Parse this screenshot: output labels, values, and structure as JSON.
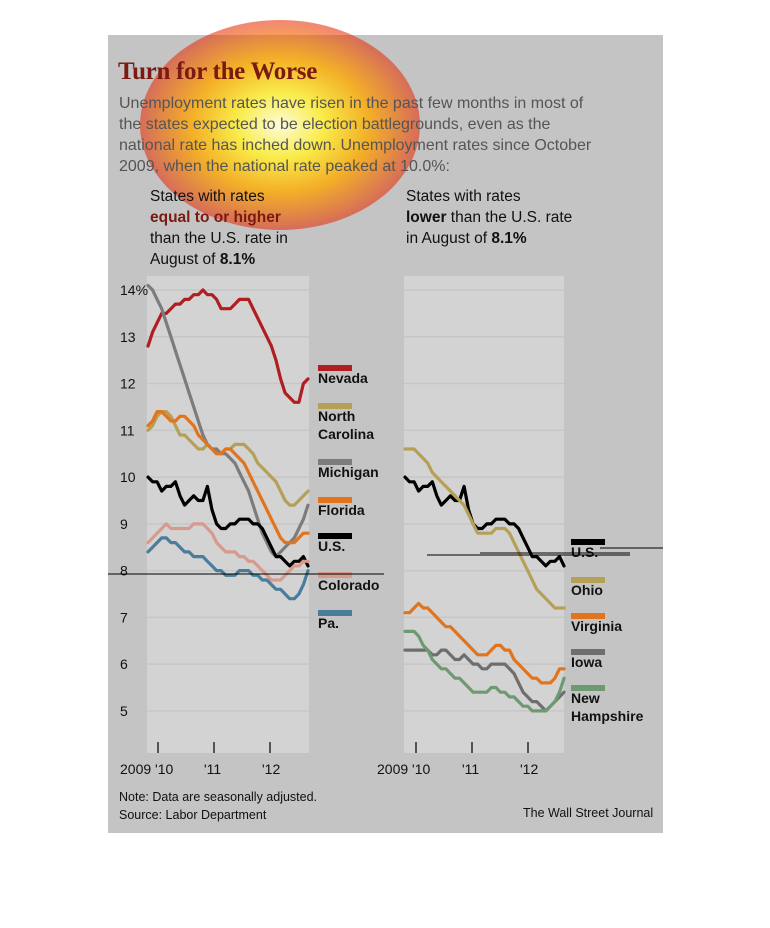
{
  "title": "Turn for the Worse",
  "intro": "Unemployment rates have risen in the past few months in most of the states expected to be election battlegrounds, even as the national rate has inched down. Unemployment rates since October 2009, when the national rate peaked at 10.0%:",
  "left_header": {
    "pre": "States with rates",
    "bold": "equal to or higher",
    "post": "than the U.S. rate in August of",
    "value": "8.1%"
  },
  "right_header": {
    "pre": "States with rates",
    "bold": "lower",
    "post": "than the U.S. rate in August of",
    "value": "8.1%"
  },
  "note": "Note: Data are seasonally adjusted.",
  "source": "Source: Labor Department",
  "credit": "The Wall Street Journal",
  "colors": {
    "card": "#c4c4c4",
    "band": "#d3d3d3",
    "grid": "#c6c6c6",
    "title": "#7a1a10"
  },
  "chart_data": [
    {
      "type": "line",
      "ylim": [
        4.1,
        14.3
      ],
      "y_ticks": [
        5,
        6,
        7,
        8,
        9,
        10,
        11,
        12,
        13,
        14
      ],
      "y_tick_labels": [
        "5",
        "6",
        "7",
        "8",
        "9",
        "10",
        "11",
        "12",
        "13",
        "14%"
      ],
      "x_tick_labels": [
        "2009 '10",
        "'11",
        "'12"
      ],
      "x_range": [
        "2009-10",
        "2012-08"
      ],
      "grid": true,
      "legend": "right",
      "series": [
        {
          "name": "Nevada",
          "color": "#b01e22",
          "values": [
            12.8,
            13.1,
            13.3,
            13.5,
            13.5,
            13.6,
            13.7,
            13.7,
            13.8,
            13.8,
            13.9,
            13.9,
            14.0,
            13.9,
            13.9,
            13.8,
            13.6,
            13.6,
            13.6,
            13.7,
            13.8,
            13.8,
            13.8,
            13.6,
            13.4,
            13.2,
            13.0,
            12.8,
            12.5,
            12.1,
            11.8,
            11.7,
            11.6,
            11.6,
            12.0,
            12.1
          ]
        },
        {
          "name": "North Carolina",
          "color": "#b5a058",
          "values": [
            11.0,
            11.1,
            11.3,
            11.4,
            11.4,
            11.3,
            11.1,
            10.9,
            10.9,
            10.8,
            10.7,
            10.6,
            10.6,
            10.7,
            10.6,
            10.5,
            10.5,
            10.6,
            10.6,
            10.7,
            10.7,
            10.7,
            10.6,
            10.5,
            10.3,
            10.2,
            10.1,
            10.0,
            9.9,
            9.7,
            9.5,
            9.4,
            9.4,
            9.5,
            9.6,
            9.7
          ]
        },
        {
          "name": "Michigan",
          "color": "#7c7c7c",
          "values": [
            14.1,
            14.0,
            13.8,
            13.6,
            13.3,
            13.0,
            12.7,
            12.4,
            12.1,
            11.8,
            11.5,
            11.2,
            10.9,
            10.7,
            10.6,
            10.6,
            10.5,
            10.5,
            10.4,
            10.3,
            10.1,
            9.9,
            9.7,
            9.4,
            9.1,
            8.8,
            8.6,
            8.4,
            8.3,
            8.4,
            8.5,
            8.6,
            8.7,
            8.9,
            9.1,
            9.4
          ]
        },
        {
          "name": "Florida",
          "color": "#e1741d",
          "values": [
            11.1,
            11.2,
            11.4,
            11.4,
            11.3,
            11.2,
            11.2,
            11.3,
            11.3,
            11.2,
            11.1,
            10.9,
            10.8,
            10.7,
            10.6,
            10.5,
            10.5,
            10.6,
            10.6,
            10.5,
            10.4,
            10.3,
            10.1,
            9.9,
            9.7,
            9.5,
            9.3,
            9.1,
            8.9,
            8.7,
            8.6,
            8.6,
            8.6,
            8.7,
            8.8,
            8.8
          ]
        },
        {
          "name": "U.S.",
          "color": "#000000",
          "values": [
            10.0,
            9.9,
            9.9,
            9.7,
            9.8,
            9.8,
            9.9,
            9.6,
            9.4,
            9.5,
            9.6,
            9.5,
            9.5,
            9.8,
            9.3,
            9.0,
            8.9,
            8.9,
            9.0,
            9.0,
            9.1,
            9.1,
            9.1,
            9.0,
            9.0,
            8.9,
            8.7,
            8.5,
            8.3,
            8.3,
            8.2,
            8.1,
            8.2,
            8.2,
            8.3,
            8.1
          ]
        },
        {
          "name": "Colorado",
          "color": "#d79a8c",
          "values": [
            8.6,
            8.7,
            8.8,
            8.9,
            9.0,
            8.9,
            8.9,
            8.9,
            8.9,
            8.9,
            9.0,
            9.0,
            9.0,
            8.9,
            8.8,
            8.6,
            8.5,
            8.4,
            8.4,
            8.4,
            8.3,
            8.3,
            8.2,
            8.2,
            8.1,
            8.0,
            7.9,
            7.8,
            7.8,
            7.8,
            7.9,
            8.0,
            8.1,
            8.1,
            8.2,
            8.2
          ]
        },
        {
          "name": "Pa.",
          "color": "#4a7d9b",
          "values": [
            8.4,
            8.5,
            8.6,
            8.7,
            8.7,
            8.6,
            8.6,
            8.5,
            8.4,
            8.4,
            8.3,
            8.3,
            8.3,
            8.2,
            8.1,
            8.0,
            8.0,
            7.9,
            7.9,
            7.9,
            8.0,
            8.0,
            8.0,
            7.9,
            7.9,
            7.8,
            7.8,
            7.7,
            7.6,
            7.6,
            7.5,
            7.4,
            7.4,
            7.5,
            7.7,
            8.0
          ]
        }
      ]
    },
    {
      "type": "line",
      "ylim": [
        4.1,
        14.3
      ],
      "x_tick_labels": [
        "2009 '10",
        "'11",
        "'12"
      ],
      "x_range": [
        "2009-10",
        "2012-08"
      ],
      "grid": true,
      "legend": "right",
      "series": [
        {
          "name": "U.S.",
          "color": "#000000",
          "values": [
            10.0,
            9.9,
            9.9,
            9.7,
            9.8,
            9.8,
            9.9,
            9.6,
            9.4,
            9.5,
            9.6,
            9.5,
            9.5,
            9.8,
            9.3,
            9.0,
            8.9,
            8.9,
            9.0,
            9.0,
            9.1,
            9.1,
            9.1,
            9.0,
            9.0,
            8.9,
            8.7,
            8.5,
            8.3,
            8.3,
            8.2,
            8.1,
            8.2,
            8.2,
            8.3,
            8.1
          ]
        },
        {
          "name": "Ohio",
          "color": "#b5a058",
          "values": [
            10.6,
            10.6,
            10.6,
            10.5,
            10.4,
            10.3,
            10.1,
            10.0,
            9.9,
            9.8,
            9.7,
            9.6,
            9.5,
            9.4,
            9.2,
            9.0,
            8.8,
            8.8,
            8.8,
            8.8,
            8.9,
            8.9,
            8.9,
            8.8,
            8.6,
            8.4,
            8.2,
            8.0,
            7.8,
            7.6,
            7.5,
            7.4,
            7.3,
            7.2,
            7.2,
            7.2
          ]
        },
        {
          "name": "Virginia",
          "color": "#e1741d",
          "values": [
            7.1,
            7.1,
            7.2,
            7.3,
            7.2,
            7.2,
            7.1,
            7.0,
            6.9,
            6.8,
            6.8,
            6.7,
            6.6,
            6.5,
            6.4,
            6.3,
            6.2,
            6.2,
            6.2,
            6.3,
            6.4,
            6.4,
            6.3,
            6.3,
            6.1,
            6.0,
            5.9,
            5.8,
            5.7,
            5.7,
            5.6,
            5.6,
            5.6,
            5.7,
            5.9,
            5.9
          ]
        },
        {
          "name": "Iowa",
          "color": "#6e6e6e",
          "values": [
            6.3,
            6.3,
            6.3,
            6.3,
            6.3,
            6.3,
            6.2,
            6.2,
            6.3,
            6.3,
            6.2,
            6.1,
            6.1,
            6.2,
            6.1,
            6.0,
            6.0,
            5.9,
            5.9,
            6.0,
            6.0,
            6.0,
            6.0,
            5.9,
            5.8,
            5.6,
            5.4,
            5.3,
            5.2,
            5.2,
            5.1,
            5.0,
            5.1,
            5.2,
            5.3,
            5.4
          ]
        },
        {
          "name": "New Hampshire",
          "color": "#6e9a71",
          "values": [
            6.7,
            6.7,
            6.7,
            6.6,
            6.4,
            6.3,
            6.1,
            6.0,
            5.9,
            5.9,
            5.8,
            5.7,
            5.7,
            5.6,
            5.5,
            5.4,
            5.4,
            5.4,
            5.4,
            5.5,
            5.5,
            5.4,
            5.4,
            5.3,
            5.3,
            5.2,
            5.1,
            5.1,
            5.0,
            5.0,
            5.0,
            5.0,
            5.1,
            5.2,
            5.4,
            5.7
          ]
        }
      ]
    }
  ]
}
